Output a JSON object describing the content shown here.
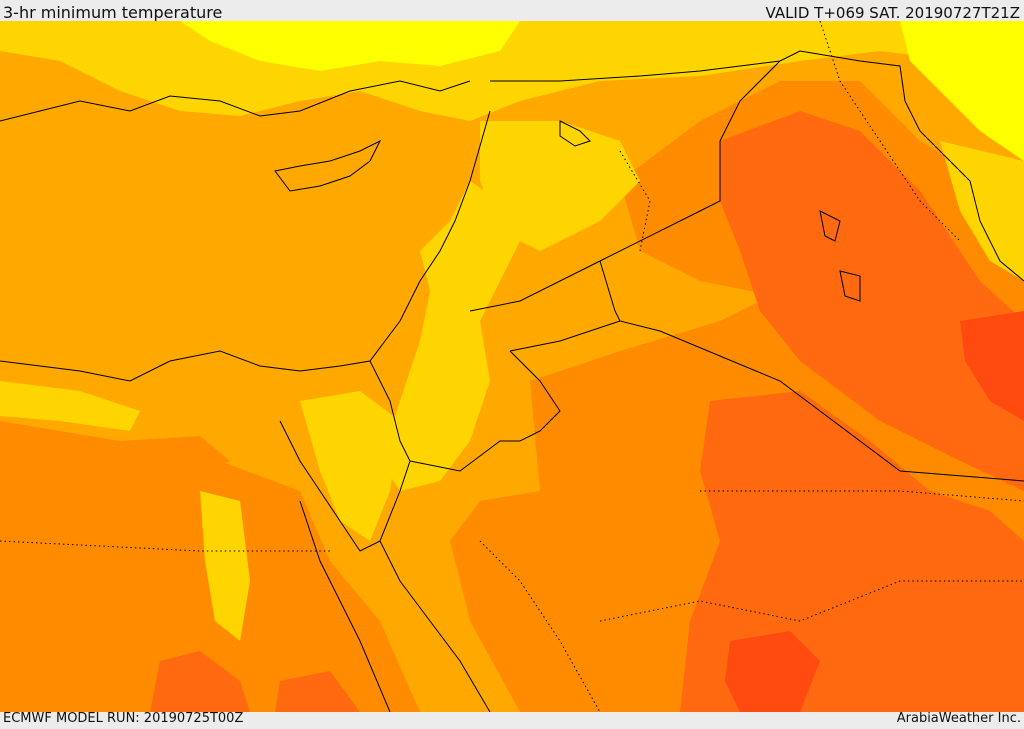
{
  "header": {
    "title": "3-hr minimum temperature",
    "valid_label": "VALID T+069 SAT. 20190727T21Z"
  },
  "footer": {
    "model_run": "ECMWF MODEL RUN: 20190725T00Z",
    "credit": "ArabiaWeather Inc."
  },
  "map": {
    "variable": "3-hr minimum temperature",
    "colors": {
      "cool_yellow": "#ffff00",
      "yellow": "#ffd500",
      "light_orange": "#ffb000",
      "orange": "#ff8c00",
      "dark_orange": "#ff6a10",
      "red_orange": "#ff4a10",
      "borders": "#000000"
    }
  }
}
